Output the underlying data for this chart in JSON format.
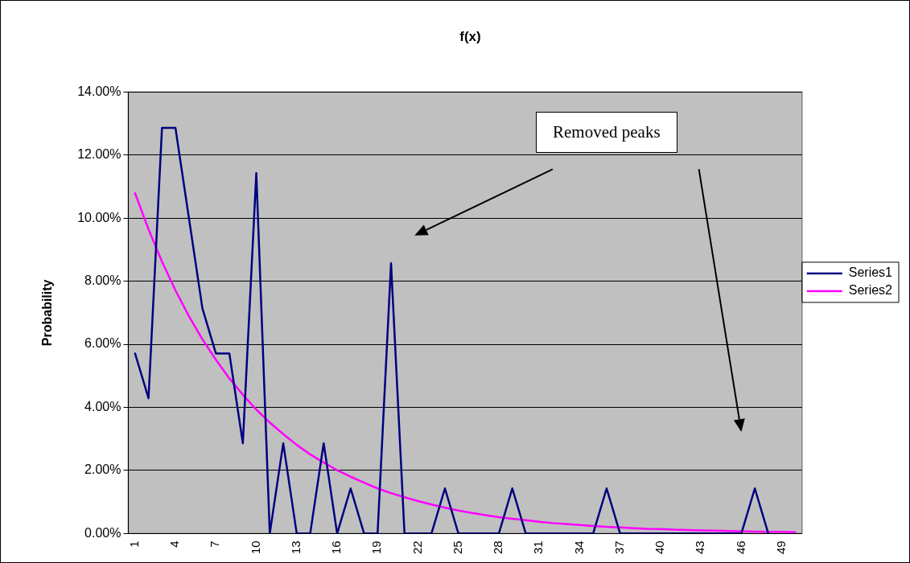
{
  "chart_data": {
    "type": "line",
    "title": "f(x)",
    "ylabel": "Probability",
    "categories": [
      "1",
      null,
      null,
      "4",
      null,
      null,
      "7",
      null,
      null,
      "10",
      null,
      null,
      "13",
      null,
      null,
      "16",
      null,
      null,
      "19",
      null,
      null,
      "22",
      null,
      null,
      "25",
      null,
      null,
      "28",
      null,
      null,
      "31",
      null,
      null,
      "34",
      null,
      null,
      "37",
      null,
      null,
      "40",
      null,
      null,
      "43",
      null,
      null,
      "46",
      null,
      null,
      "49",
      null
    ],
    "series": [
      {
        "name": "Series1",
        "color": "#000080",
        "values": [
          5.71,
          4.29,
          12.86,
          12.86,
          10,
          7.14,
          5.71,
          5.71,
          2.86,
          11.43,
          0,
          2.86,
          0,
          0,
          2.86,
          0,
          1.43,
          0,
          0,
          8.57,
          0,
          0,
          0,
          1.43,
          0,
          0,
          0,
          0,
          1.43,
          0,
          0,
          0,
          0,
          0,
          0,
          1.43,
          0,
          0,
          0,
          0,
          0,
          0,
          0,
          0,
          0,
          0,
          1.43,
          0,
          null,
          null
        ]
      },
      {
        "name": "Series2",
        "color": "#ff00ff",
        "values": [
          10.79,
          9.65,
          8.62,
          7.71,
          6.89,
          6.16,
          5.51,
          4.92,
          4.4,
          3.93,
          3.52,
          3.15,
          2.81,
          2.51,
          2.25,
          2.01,
          1.8,
          1.61,
          1.43,
          1.28,
          1.15,
          1.03,
          0.92,
          0.82,
          0.73,
          0.65,
          0.58,
          0.52,
          0.47,
          0.42,
          0.37,
          0.33,
          0.3,
          0.27,
          0.24,
          0.21,
          0.19,
          0.17,
          0.15,
          0.14,
          0.12,
          0.11,
          0.1,
          0.09,
          0.08,
          0.07,
          0.06,
          0.05,
          0.05,
          0.04
        ]
      }
    ],
    "ylim": [
      0,
      14
    ],
    "yticks": [
      {
        "value": 0,
        "label": "0.00%"
      },
      {
        "value": 2,
        "label": "2.00%"
      },
      {
        "value": 4,
        "label": "4.00%"
      },
      {
        "value": 6,
        "label": "6.00%"
      },
      {
        "value": 8,
        "label": "8.00%"
      },
      {
        "value": 10,
        "label": "10.00%"
      },
      {
        "value": 12,
        "label": "12.00%"
      },
      {
        "value": 14,
        "label": "14.00%"
      }
    ],
    "grid": "y",
    "legend": "right",
    "marker": "none",
    "line_style": "solid",
    "annotations": [
      "Removed peaks"
    ]
  }
}
